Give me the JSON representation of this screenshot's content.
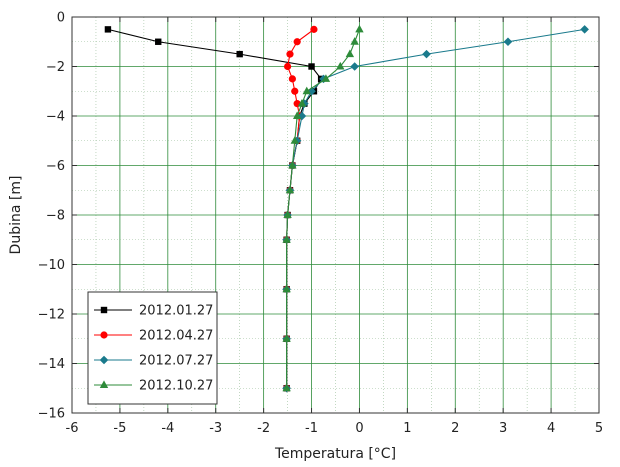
{
  "chart_data": {
    "type": "line",
    "title": "",
    "xlabel": "Temperatura [°C]",
    "ylabel": "Dubina [m]",
    "xlim": [
      -6,
      5
    ],
    "ylim": [
      -16,
      0
    ],
    "x_ticks": [
      -6,
      -5,
      -4,
      -3,
      -2,
      -1,
      0,
      1,
      2,
      3,
      4,
      5
    ],
    "y_ticks": [
      0,
      -2,
      -4,
      -6,
      -8,
      -10,
      -12,
      -14,
      -16
    ],
    "x_tick_labels": [
      "-6",
      "-5",
      "-4",
      "-3",
      "-2",
      "-1",
      "0",
      "1",
      "2",
      "3",
      "4",
      "5"
    ],
    "y_tick_labels": [
      "0",
      "−2",
      "−4",
      "−6",
      "−8",
      "−10",
      "−12",
      "−14",
      "−16"
    ],
    "grid": true,
    "legend_position": "bottom-left",
    "series": [
      {
        "name": "2012.01.27",
        "color": "#000000",
        "marker": "square",
        "points": [
          [
            -5.25,
            -0.5
          ],
          [
            -4.2,
            -1.0
          ],
          [
            -2.5,
            -1.5
          ],
          [
            -1.0,
            -2.0
          ],
          [
            -0.8,
            -2.5
          ],
          [
            -0.95,
            -3.0
          ],
          [
            -1.15,
            -3.5
          ],
          [
            -1.25,
            -4.0
          ],
          [
            -1.3,
            -5.0
          ],
          [
            -1.4,
            -6.0
          ],
          [
            -1.45,
            -7.0
          ],
          [
            -1.5,
            -8.0
          ],
          [
            -1.52,
            -9.0
          ],
          [
            -1.52,
            -11.0
          ],
          [
            -1.52,
            -13.0
          ],
          [
            -1.52,
            -15.0
          ]
        ]
      },
      {
        "name": "2012.04.27",
        "color": "#ff0000",
        "marker": "circle",
        "points": [
          [
            -0.95,
            -0.5
          ],
          [
            -1.3,
            -1.0
          ],
          [
            -1.45,
            -1.5
          ],
          [
            -1.5,
            -2.0
          ],
          [
            -1.4,
            -2.5
          ],
          [
            -1.35,
            -3.0
          ],
          [
            -1.3,
            -3.5
          ],
          [
            -1.25,
            -4.0
          ],
          [
            -1.3,
            -5.0
          ],
          [
            -1.4,
            -6.0
          ],
          [
            -1.45,
            -7.0
          ],
          [
            -1.5,
            -8.0
          ],
          [
            -1.52,
            -9.0
          ],
          [
            -1.52,
            -11.0
          ],
          [
            -1.52,
            -13.0
          ],
          [
            -1.52,
            -15.0
          ]
        ]
      },
      {
        "name": "2012.07.27",
        "color": "#1a7a8c",
        "marker": "diamond",
        "points": [
          [
            4.7,
            -0.5
          ],
          [
            3.1,
            -1.0
          ],
          [
            1.4,
            -1.5
          ],
          [
            -0.1,
            -2.0
          ],
          [
            -0.75,
            -2.5
          ],
          [
            -1.0,
            -3.0
          ],
          [
            -1.15,
            -3.5
          ],
          [
            -1.2,
            -4.0
          ],
          [
            -1.3,
            -5.0
          ],
          [
            -1.4,
            -6.0
          ],
          [
            -1.45,
            -7.0
          ],
          [
            -1.5,
            -8.0
          ],
          [
            -1.52,
            -9.0
          ],
          [
            -1.52,
            -11.0
          ],
          [
            -1.52,
            -13.0
          ],
          [
            -1.52,
            -15.0
          ]
        ]
      },
      {
        "name": "2012.10.27",
        "color": "#2e8b3a",
        "marker": "triangle",
        "points": [
          [
            0.0,
            -0.5
          ],
          [
            -0.1,
            -1.0
          ],
          [
            -0.2,
            -1.5
          ],
          [
            -0.4,
            -2.0
          ],
          [
            -0.7,
            -2.5
          ],
          [
            -1.1,
            -3.0
          ],
          [
            -1.2,
            -3.5
          ],
          [
            -1.3,
            -4.0
          ],
          [
            -1.35,
            -5.0
          ],
          [
            -1.4,
            -6.0
          ],
          [
            -1.45,
            -7.0
          ],
          [
            -1.5,
            -8.0
          ],
          [
            -1.52,
            -9.0
          ],
          [
            -1.52,
            -11.0
          ],
          [
            -1.52,
            -13.0
          ],
          [
            -1.52,
            -15.0
          ]
        ]
      }
    ]
  }
}
